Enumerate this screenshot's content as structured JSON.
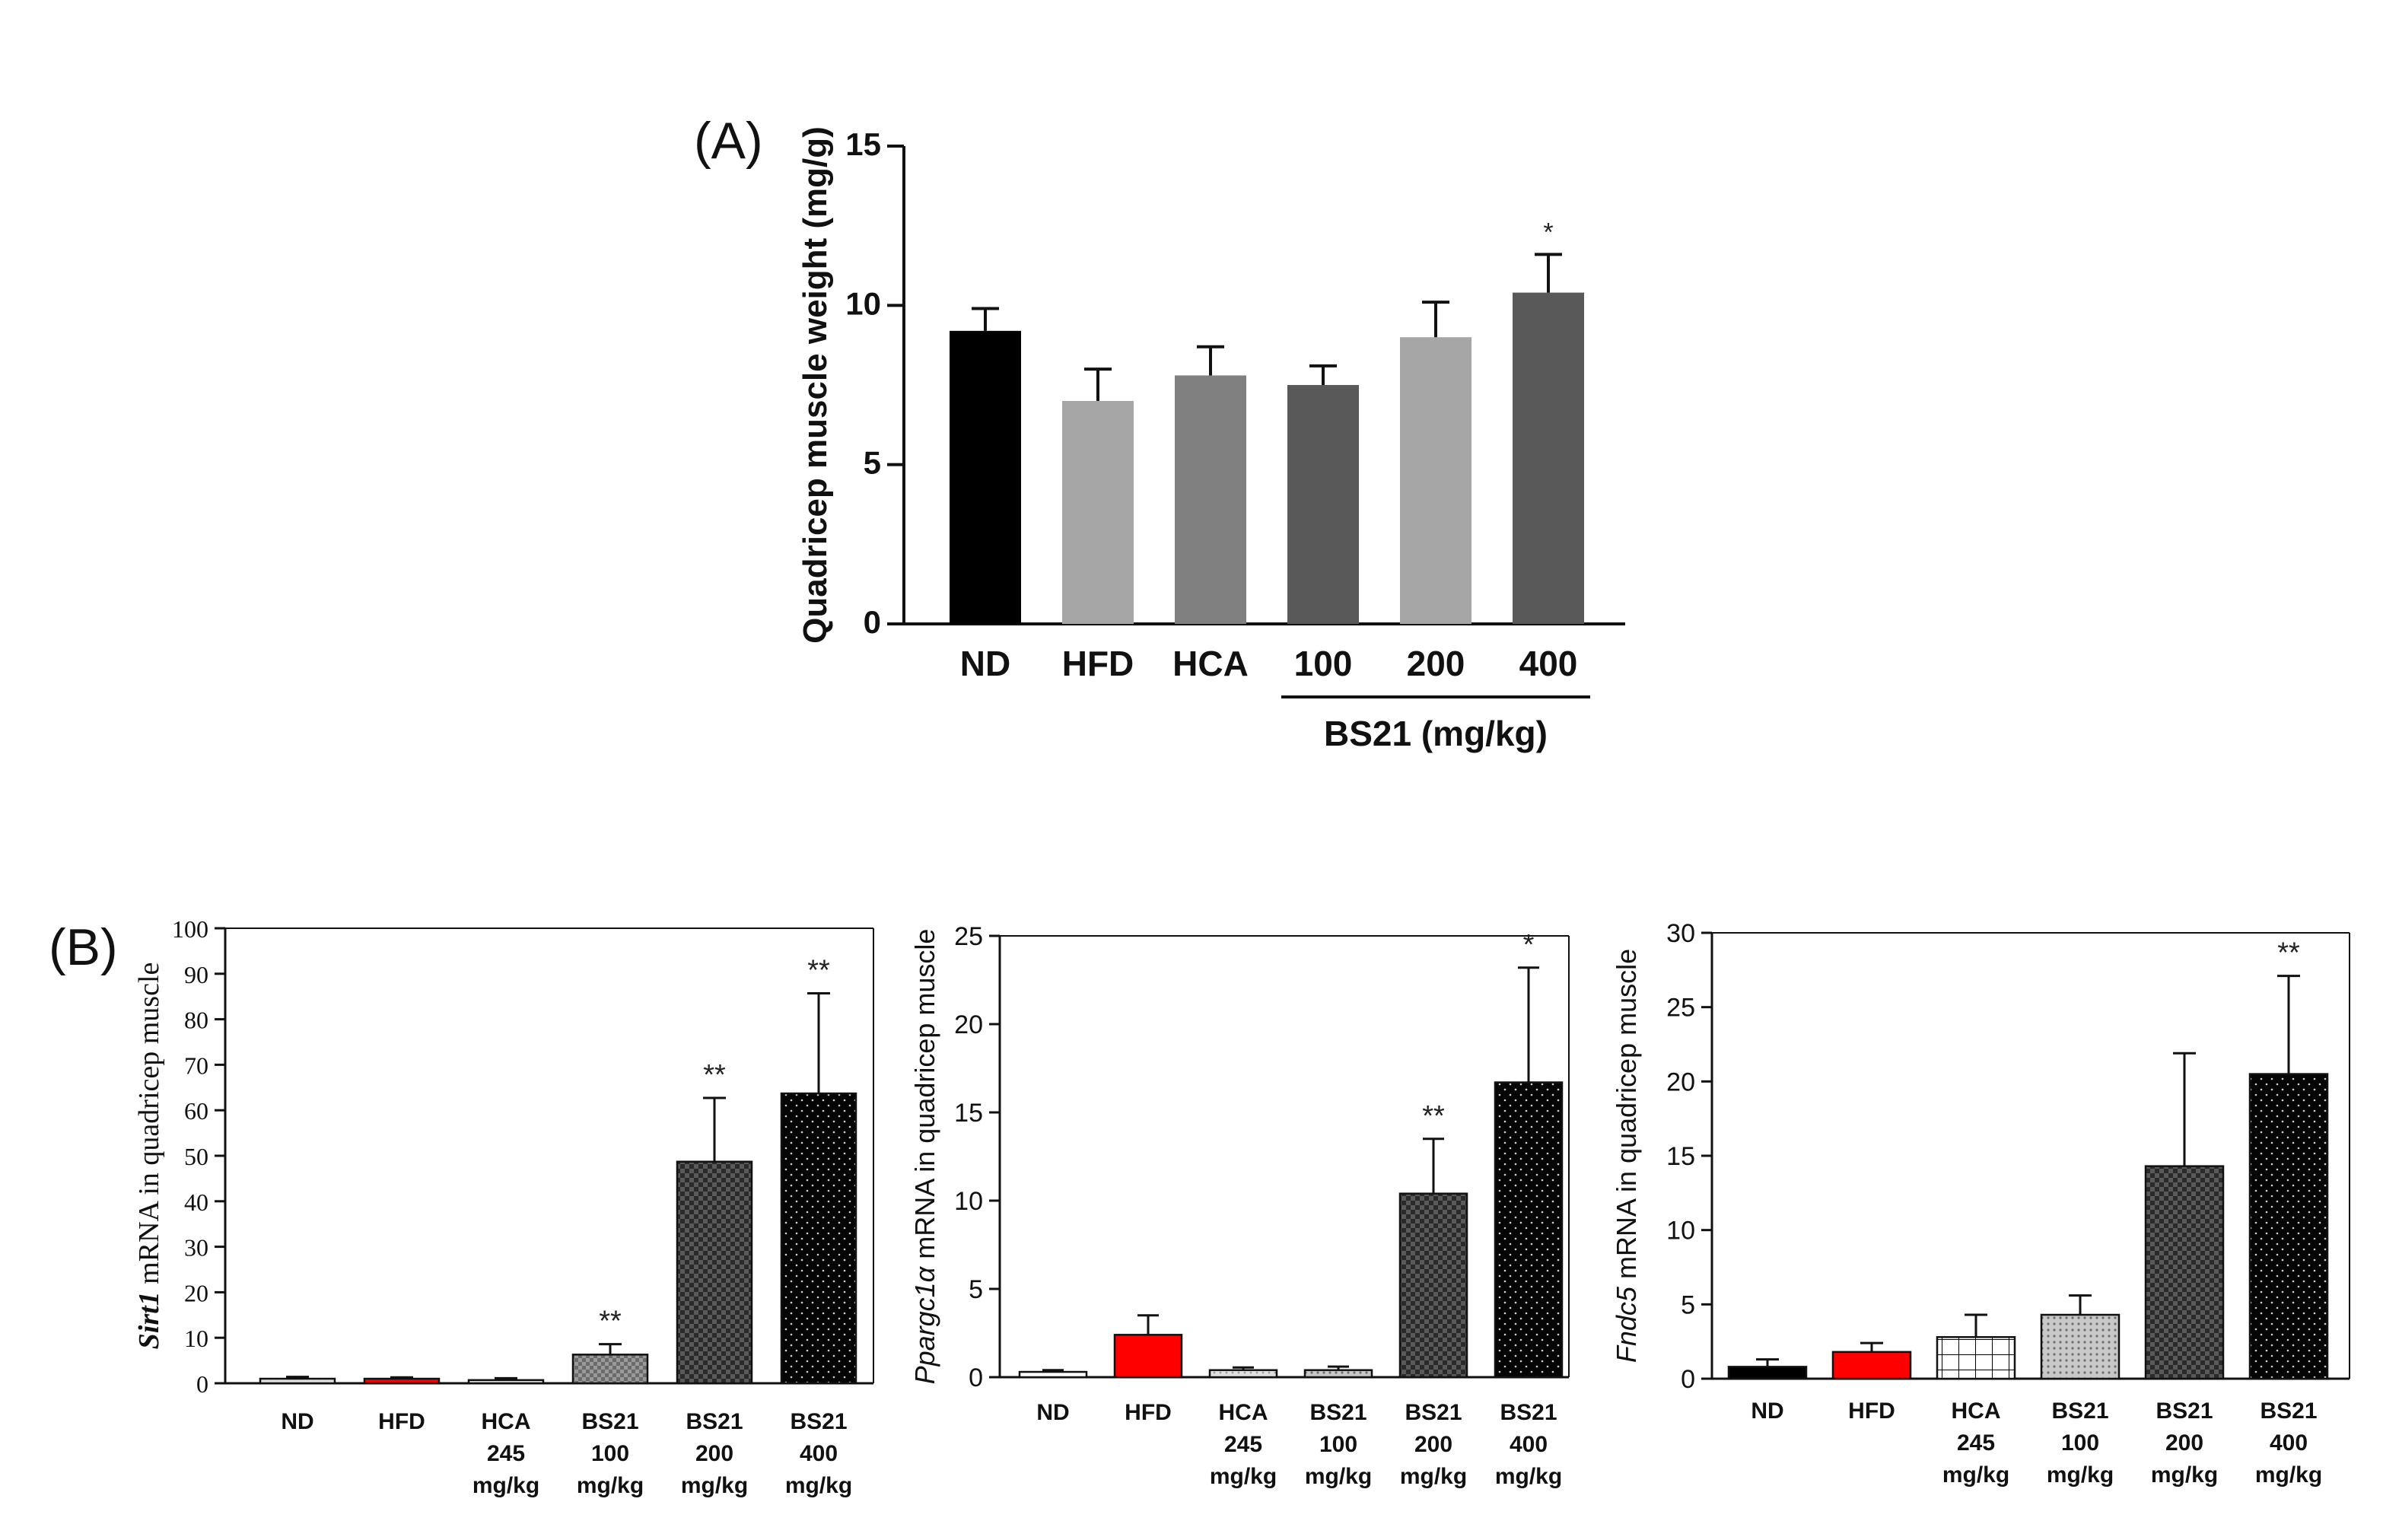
{
  "panel_labels": {
    "a": "(A)",
    "b": "(B)"
  },
  "chart_data": [
    {
      "id": "A",
      "type": "bar",
      "ylabel": "Quadricep muscle weight (mg/g)",
      "categories": [
        "ND",
        "HFD",
        "HCA",
        "100",
        "200",
        "400"
      ],
      "group_label": "BS21 (mg/kg)",
      "values": [
        9.2,
        7.0,
        7.8,
        7.5,
        9.0,
        10.4
      ],
      "errors": [
        0.7,
        1.0,
        0.9,
        0.6,
        1.1,
        1.2
      ],
      "significance": [
        "",
        "",
        "",
        "",
        "",
        "*"
      ],
      "ylim": [
        0,
        15
      ],
      "yticks": [
        0,
        5,
        10,
        15
      ],
      "colors": [
        "#000000",
        "#a6a6a6",
        "#808080",
        "#595959",
        "#a6a6a6",
        "#595959"
      ]
    },
    {
      "id": "B1",
      "type": "bar",
      "ylabel_italic": "Sirt1",
      "ylabel_rest": " mRNA in quadricep muscle",
      "categories": [
        "ND",
        "HFD",
        "HCA\n245\nmg/kg",
        "BS21\n100\nmg/kg",
        "BS21\n200\nmg/kg",
        "BS21\n400\nmg/kg"
      ],
      "values": [
        1.0,
        1.0,
        0.7,
        6.3,
        48.7,
        63.7
      ],
      "errors": [
        0.4,
        0.3,
        0.4,
        2.3,
        14.0,
        22.0
      ],
      "significance": [
        "",
        "",
        "",
        "**",
        "**",
        "**"
      ],
      "ylim": [
        0,
        100
      ],
      "yticks": [
        0,
        10,
        20,
        30,
        40,
        50,
        60,
        70,
        80,
        90,
        100
      ],
      "colors": [
        "#d9d9d9",
        "#ff0000",
        "#bfbfbf",
        "#8c8c8c",
        "#404040",
        "#0d0d0d"
      ]
    },
    {
      "id": "B2",
      "type": "bar",
      "ylabel_italic": "Ppargc1α",
      "ylabel_rest": " mRNA in quadricep muscle",
      "categories": [
        "ND",
        "HFD",
        "HCA\n245\nmg/kg",
        "BS21\n100\nmg/kg",
        "BS21\n200\nmg/kg",
        "BS21\n400\nmg/kg"
      ],
      "values": [
        0.3,
        2.4,
        0.4,
        0.4,
        10.4,
        16.7
      ],
      "errors": [
        0.1,
        1.1,
        0.15,
        0.2,
        3.1,
        6.5
      ],
      "significance": [
        "",
        "",
        "",
        "",
        "**",
        "*"
      ],
      "ylim": [
        0,
        25
      ],
      "yticks": [
        0,
        5,
        10,
        15,
        20,
        25
      ],
      "colors": [
        "#ffffff",
        "#ff0000",
        "#d9d9d9",
        "#bfbfbf",
        "#404040",
        "#0d0d0d"
      ]
    },
    {
      "id": "B3",
      "type": "bar",
      "ylabel_italic": "Fndc5",
      "ylabel_rest": " mRNA in quadricep muscle",
      "categories": [
        "ND",
        "HFD",
        "HCA\n245\nmg/kg",
        "BS21\n100\nmg/kg",
        "BS21\n200\nmg/kg",
        "BS21\n400\nmg/kg"
      ],
      "values": [
        0.8,
        1.8,
        2.8,
        4.3,
        14.3,
        20.5
      ],
      "errors": [
        0.5,
        0.6,
        1.5,
        1.3,
        7.6,
        6.6
      ],
      "significance": [
        "",
        "",
        "",
        "",
        "",
        "**"
      ],
      "ylim": [
        0,
        30
      ],
      "yticks": [
        0,
        5,
        10,
        15,
        20,
        25,
        30
      ],
      "colors": [
        "#000000",
        "#ff0000",
        "#ffffff",
        "#bfbfbf",
        "#595959",
        "#0d0d0d"
      ]
    }
  ]
}
